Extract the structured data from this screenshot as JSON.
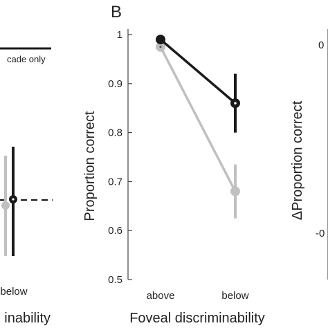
{
  "colors": {
    "black_series": "#1a1a1a",
    "gray_series": "#c0c0c0",
    "axis": "#444444"
  },
  "left_panel": {
    "legend_text": "cade only",
    "x_tick": "below",
    "xlabel_fragment": "inability",
    "chart_data": {
      "type": "scatter",
      "series": [
        {
          "color": "gray",
          "x": "below",
          "y_rel": 0.0,
          "err_rel": [
            -0.27,
            0.27
          ]
        },
        {
          "color": "black",
          "x": "below",
          "y_rel": 0.02,
          "err_rel": [
            -0.3,
            0.3
          ]
        }
      ],
      "reference_line": "dashed"
    }
  },
  "panel_b": {
    "label": "B",
    "chart_data": {
      "type": "line",
      "categories": [
        "above",
        "below"
      ],
      "series": [
        {
          "color": "black",
          "values": [
            0.99,
            0.86
          ],
          "err_low": [
            0.99,
            0.8
          ],
          "err_high": [
            0.99,
            0.92
          ]
        },
        {
          "color": "gray",
          "values": [
            0.975,
            0.68
          ],
          "err_low": [
            0.965,
            0.625
          ],
          "err_high": [
            0.985,
            0.735
          ]
        }
      ],
      "xlabel": "Foveal discriminability",
      "ylabel": "Proportion correct",
      "ylim": [
        0.5,
        1.0
      ],
      "yticks": [
        "0.5",
        "0.6",
        "0.7",
        "0.8",
        "0.9",
        "1"
      ]
    }
  },
  "right_panel": {
    "ylabel": "ΔProportion correct",
    "tick_top": "0",
    "tick_bottom": "-0"
  }
}
